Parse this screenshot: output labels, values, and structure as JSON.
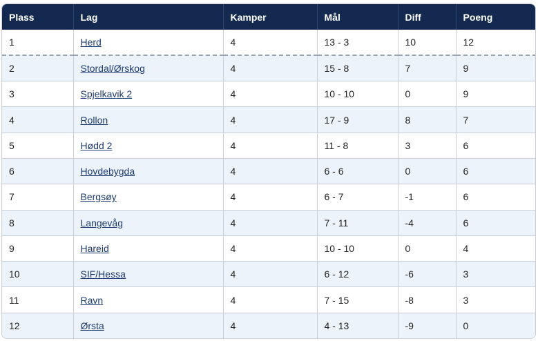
{
  "table": {
    "headers": [
      "Plass",
      "Lag",
      "Kamper",
      "Mål",
      "Diff",
      "Poeng"
    ],
    "rows": [
      {
        "plass": "1",
        "lag": "Herd",
        "kamper": "4",
        "maal": "13 - 3",
        "diff": "10",
        "poeng": "12"
      },
      {
        "plass": "2",
        "lag": "Stordal/Ørskog",
        "kamper": "4",
        "maal": "15 - 8",
        "diff": "7",
        "poeng": "9"
      },
      {
        "plass": "3",
        "lag": "Spjelkavik 2",
        "kamper": "4",
        "maal": "10 - 10",
        "diff": "0",
        "poeng": "9"
      },
      {
        "plass": "4",
        "lag": "Rollon",
        "kamper": "4",
        "maal": "17 - 9",
        "diff": "8",
        "poeng": "7"
      },
      {
        "plass": "5",
        "lag": "Hødd 2",
        "kamper": "4",
        "maal": "11 - 8",
        "diff": "3",
        "poeng": "6"
      },
      {
        "plass": "6",
        "lag": "Hovdebygda",
        "kamper": "4",
        "maal": "6 - 6",
        "diff": "0",
        "poeng": "6"
      },
      {
        "plass": "7",
        "lag": "Bergsøy",
        "kamper": "4",
        "maal": "6 - 7",
        "diff": "-1",
        "poeng": "6"
      },
      {
        "plass": "8",
        "lag": "Langevåg",
        "kamper": "4",
        "maal": "7 - 11",
        "diff": "-4",
        "poeng": "6"
      },
      {
        "plass": "9",
        "lag": "Hareid",
        "kamper": "4",
        "maal": "10 - 10",
        "diff": "0",
        "poeng": "4"
      },
      {
        "plass": "10",
        "lag": "SIF/Hessa",
        "kamper": "4",
        "maal": "6 - 12",
        "diff": "-6",
        "poeng": "3"
      },
      {
        "plass": "11",
        "lag": "Ravn",
        "kamper": "4",
        "maal": "7 - 15",
        "diff": "-8",
        "poeng": "3"
      },
      {
        "plass": "12",
        "lag": "Ørsta",
        "kamper": "4",
        "maal": "4 - 13",
        "diff": "-9",
        "poeng": "0"
      }
    ]
  },
  "colors": {
    "header_bg": "#13294f",
    "header_text": "#ffffff",
    "stripe_bg": "#edf3fa",
    "link": "#1d3a6e"
  }
}
